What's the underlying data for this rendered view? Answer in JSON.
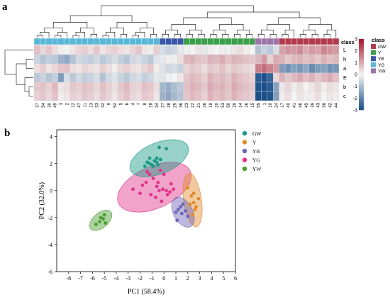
{
  "chart_data": [
    {
      "panel": "a",
      "type": "heatmap",
      "rows": [
        "L",
        "h",
        "a",
        "E",
        "b",
        "c"
      ],
      "columns": [
        "37",
        "54",
        "30",
        "49",
        "3",
        "2",
        "12",
        "47",
        "11",
        "13",
        "33",
        "32",
        "9",
        "52",
        "5",
        "6",
        "4",
        "7",
        "8",
        "18",
        "34",
        "27",
        "28",
        "25",
        "36",
        "23",
        "22",
        "21",
        "26",
        "19",
        "20",
        "53",
        "50",
        "29",
        "14",
        "16",
        "15",
        "55",
        "1",
        "10",
        "24",
        "17",
        "40",
        "41",
        "46",
        "45",
        "39",
        "43",
        "38",
        "42",
        "44"
      ],
      "column_class_label": "class",
      "classes": [
        "GW",
        "Y",
        "YB",
        "YG",
        "YW"
      ],
      "class_colors": {
        "GW": "#b23a4c",
        "Y": "#3b9e4a",
        "YB": "#3a56a8",
        "YG": "#5ab6d6",
        "YW": "#9c74a8"
      },
      "column_classes": [
        "YG",
        "YG",
        "YG",
        "YG",
        "YG",
        "YG",
        "YG",
        "YG",
        "YG",
        "YG",
        "YG",
        "YG",
        "YG",
        "YG",
        "YG",
        "YG",
        "YG",
        "YG",
        "YG",
        "YG",
        "YG",
        "YB",
        "YB",
        "YB",
        "YB",
        "Y",
        "Y",
        "Y",
        "Y",
        "Y",
        "Y",
        "Y",
        "Y",
        "Y",
        "Y",
        "Y",
        "Y",
        "YW",
        "YW",
        "YW",
        "YW",
        "GW",
        "GW",
        "GW",
        "GW",
        "GW",
        "GW",
        "GW",
        "GW",
        "GW",
        "GW"
      ],
      "color_scale": {
        "min": -3,
        "max": 3,
        "ticks": [
          3,
          2,
          1,
          0,
          -1,
          -2,
          -3
        ],
        "low": "#1a4f8a",
        "mid": "#f4f4f4",
        "high": "#a5142a"
      },
      "values": [
        [
          0.7,
          0.4,
          0.6,
          0.3,
          0.1,
          0.0,
          0.2,
          0.4,
          0.5,
          0.3,
          0.6,
          0.2,
          0.4,
          0.5,
          0.3,
          0.2,
          0.4,
          0.6,
          0.2,
          0.1,
          0.5,
          -0.4,
          -0.6,
          -0.5,
          -0.2,
          -0.1,
          0.0,
          0.2,
          -0.2,
          0.1,
          0.0,
          0.1,
          -0.1,
          0.2,
          0.3,
          0.1,
          0.0,
          -0.9,
          -0.6,
          -0.8,
          -0.4,
          1.1,
          1.3,
          1.2,
          1.4,
          1.0,
          1.2,
          1.1,
          1.5,
          1.3,
          1.2
        ],
        [
          -0.6,
          -0.9,
          -0.7,
          -0.8,
          -1.2,
          -1.4,
          -0.9,
          -0.5,
          -0.6,
          -0.7,
          -0.5,
          -0.8,
          -0.6,
          -0.4,
          -0.7,
          -0.9,
          -0.5,
          -0.4,
          -0.6,
          -0.8,
          -0.3,
          -0.2,
          0.1,
          -0.1,
          0.3,
          0.8,
          0.9,
          0.7,
          0.6,
          0.9,
          0.8,
          1.0,
          0.7,
          0.9,
          0.8,
          0.7,
          0.6,
          0.8,
          1.2,
          0.5,
          1.0,
          0.9,
          0.6,
          0.8,
          0.9,
          0.7,
          0.8,
          0.6,
          0.9,
          0.7,
          0.8
        ],
        [
          0.3,
          0.5,
          0.2,
          0.4,
          0.6,
          0.7,
          0.3,
          0.2,
          0.4,
          0.3,
          0.2,
          0.5,
          0.3,
          0.1,
          0.4,
          0.5,
          0.3,
          0.2,
          0.4,
          0.6,
          0.1,
          -0.3,
          -0.5,
          -0.4,
          -0.6,
          0.4,
          0.6,
          0.5,
          0.3,
          0.6,
          0.5,
          0.7,
          0.4,
          0.6,
          0.5,
          0.4,
          0.3,
          1.6,
          1.8,
          1.5,
          1.2,
          -1.6,
          -1.8,
          -1.5,
          -1.7,
          -1.4,
          -1.9,
          -1.6,
          -1.5,
          -1.8,
          -1.7
        ],
        [
          -0.8,
          -0.6,
          -0.9,
          -0.7,
          -1.6,
          -0.4,
          -0.8,
          -0.5,
          -0.7,
          -0.6,
          -0.4,
          -0.9,
          -0.5,
          -0.3,
          -0.6,
          -0.8,
          -0.5,
          -0.4,
          -0.7,
          -0.5,
          -0.2,
          -0.3,
          -0.1,
          0.0,
          0.2,
          0.6,
          0.8,
          0.7,
          0.5,
          0.9,
          0.7,
          0.8,
          0.6,
          0.9,
          0.7,
          0.6,
          0.5,
          -2.8,
          -3.0,
          -2.6,
          0.4,
          0.9,
          0.6,
          0.8,
          1.0,
          0.7,
          0.9,
          0.6,
          0.8,
          1.0,
          0.7
        ],
        [
          0.6,
          0.7,
          0.5,
          0.8,
          0.2,
          0.3,
          0.6,
          0.5,
          0.7,
          0.6,
          0.4,
          0.7,
          0.5,
          0.3,
          0.6,
          0.8,
          0.5,
          0.4,
          0.7,
          0.6,
          0.3,
          -1.1,
          -1.3,
          -1.0,
          -0.8,
          0.7,
          0.9,
          0.8,
          0.6,
          1.0,
          0.8,
          0.9,
          0.7,
          1.0,
          0.8,
          0.7,
          0.6,
          -2.9,
          -3.1,
          -2.8,
          -1.5,
          0.2,
          0.4,
          0.1,
          0.3,
          0.0,
          0.2,
          0.4,
          0.1,
          0.3,
          0.2
        ],
        [
          0.5,
          0.6,
          0.4,
          0.7,
          0.1,
          0.2,
          0.5,
          0.4,
          0.6,
          0.5,
          0.3,
          0.6,
          0.4,
          0.2,
          0.5,
          0.7,
          0.4,
          0.3,
          0.6,
          0.5,
          0.2,
          -1.2,
          -1.4,
          -1.1,
          -0.9,
          0.6,
          0.8,
          0.7,
          0.5,
          0.9,
          0.7,
          0.8,
          0.6,
          0.9,
          0.7,
          0.6,
          0.5,
          -3.0,
          -3.2,
          -2.9,
          -1.6,
          0.1,
          0.3,
          0.0,
          0.2,
          -0.1,
          0.1,
          0.3,
          0.0,
          0.2,
          0.1
        ]
      ]
    },
    {
      "panel": "b",
      "type": "scatter",
      "xlabel": "PC1 (58.4%)",
      "ylabel": "PC2 (32.0%)",
      "xlim": [
        -9,
        6
      ],
      "ylim": [
        -6,
        4.5
      ],
      "xticks": [
        -8,
        -7,
        -6,
        -5,
        -4,
        -3,
        -2,
        -1,
        0,
        1,
        2,
        3,
        4,
        5,
        6
      ],
      "yticks": [
        -6,
        -4,
        -2,
        0,
        2,
        4
      ],
      "legend_position": "right",
      "series": [
        {
          "name": "GW",
          "color": "#1a9a86",
          "points": [
            [
              -1.6,
              1.8
            ],
            [
              -1.4,
              2.1
            ],
            [
              -1.2,
              2.0
            ],
            [
              -1.0,
              1.9
            ],
            [
              -0.8,
              2.2
            ],
            [
              -0.6,
              2.4
            ],
            [
              -0.3,
              2.3
            ],
            [
              -0.5,
              1.9
            ],
            [
              -0.9,
              1.8
            ],
            [
              -1.2,
              2.4
            ],
            [
              -0.4,
              3.2
            ],
            [
              0.2,
              3.1
            ],
            [
              -0.6,
              2.1
            ]
          ],
          "ellipse": {
            "cx": -0.4,
            "cy": 2.4,
            "rx": 2.6,
            "ry": 1.15,
            "angle": 22
          }
        },
        {
          "name": "Y",
          "color": "#e08a2c",
          "points": [
            [
              2.0,
              0.2
            ],
            [
              2.3,
              -0.4
            ],
            [
              2.5,
              -0.9
            ],
            [
              2.6,
              -1.4
            ],
            [
              2.4,
              -1.8
            ],
            [
              2.7,
              -1.2
            ],
            [
              2.9,
              -0.6
            ],
            [
              2.2,
              -1.0
            ],
            [
              2.5,
              -0.2
            ]
          ],
          "ellipse": {
            "cx": 2.4,
            "cy": -0.7,
            "rx": 0.75,
            "ry": 2.0,
            "angle": 8
          }
        },
        {
          "name": "YB",
          "color": "#6c63b6",
          "points": [
            [
              1.0,
              -1.6
            ],
            [
              1.2,
              -1.4
            ],
            [
              1.4,
              -1.2
            ],
            [
              1.1,
              -2.2
            ],
            [
              1.5,
              -1.7
            ],
            [
              1.8,
              -1.5
            ],
            [
              2.0,
              -1.9
            ],
            [
              1.6,
              -1.0
            ]
          ],
          "ellipse": {
            "cx": 1.6,
            "cy": -1.6,
            "rx": 0.8,
            "ry": 1.2,
            "angle": 28
          }
        },
        {
          "name": "YG",
          "color": "#e0338a",
          "points": [
            [
              -2.6,
              0.1
            ],
            [
              -2.0,
              -0.2
            ],
            [
              -1.5,
              0.6
            ],
            [
              -1.2,
              1.2
            ],
            [
              -0.9,
              0.9
            ],
            [
              -0.6,
              0.3
            ],
            [
              -0.4,
              0.0
            ],
            [
              -0.1,
              0.1
            ],
            [
              0.2,
              0.0
            ],
            [
              0.5,
              -0.1
            ],
            [
              0.8,
              0.1
            ],
            [
              -1.1,
              -0.3
            ],
            [
              -1.4,
              1.4
            ],
            [
              -0.3,
              1.5
            ],
            [
              0.0,
              1.2
            ],
            [
              -0.7,
              -0.5
            ],
            [
              -0.2,
              -0.8
            ],
            [
              0.3,
              -0.3
            ],
            [
              -0.5,
              0.6
            ],
            [
              -1.8,
              0.4
            ],
            [
              0.6,
              0.5
            ]
          ],
          "ellipse": {
            "cx": -0.8,
            "cy": 0.25,
            "rx": 3.3,
            "ry": 1.55,
            "angle": 24
          }
        },
        {
          "name": "YW",
          "color": "#4a9e2e",
          "points": [
            [
              -5.7,
              -2.5
            ],
            [
              -5.4,
              -2.3
            ],
            [
              -5.1,
              -2.1
            ],
            [
              -4.9,
              -2.4
            ],
            [
              -5.3,
              -2.0
            ],
            [
              -5.0,
              -1.8
            ]
          ],
          "ellipse": {
            "cx": -5.3,
            "cy": -2.2,
            "rx": 1.1,
            "ry": 0.55,
            "angle": 40
          }
        }
      ]
    }
  ]
}
